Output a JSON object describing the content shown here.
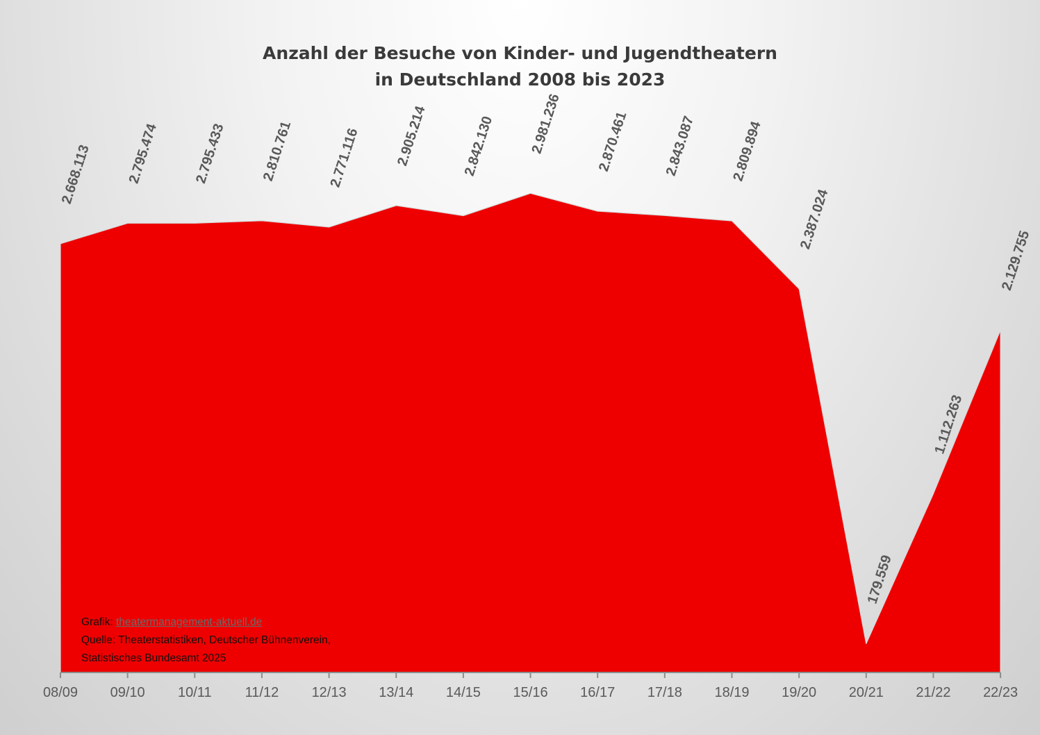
{
  "chart_data": {
    "type": "area",
    "title_lines": [
      "Anzahl der Besuche von Kinder- und Jugendtheatern",
      "in Deutschland 2008 bis 2023"
    ],
    "categories": [
      "08/09",
      "09/10",
      "10/11",
      "11/12",
      "12/13",
      "13/14",
      "14/15",
      "15/16",
      "16/17",
      "17/18",
      "18/19",
      "19/20",
      "20/21",
      "21/22",
      "22/23"
    ],
    "values": [
      2668113,
      2795474,
      2795433,
      2810761,
      2771116,
      2905214,
      2842130,
      2981236,
      2870461,
      2843087,
      2809894,
      2387024,
      179559,
      1112263,
      2129755
    ],
    "data_labels": [
      "2.668.113",
      "2.795.474",
      "2.795.433",
      "2.810.761",
      "2.771.116",
      "2.905.214",
      "2.842.130",
      "2.981.236",
      "2.870.461",
      "2.843.087",
      "2.809.894",
      "2.387.024",
      "179.559",
      "1.112.263",
      "2.129.755"
    ],
    "ylim": [
      0,
      3000000
    ],
    "grid": false,
    "legend": "none",
    "fill_color": "#ee0000",
    "axis_color": "#8c8c8c",
    "label_color": "#595959",
    "xlabel": "",
    "ylabel": ""
  },
  "credits": {
    "grafik_prefix": "Grafik: ",
    "grafik_link": "theatermanagement-aktuell.de",
    "quelle_line1": "Quelle: Theaterstatistiken, Deutscher Bühnenverein,",
    "quelle_line2": "Statistisches Bundesamt 2025"
  }
}
